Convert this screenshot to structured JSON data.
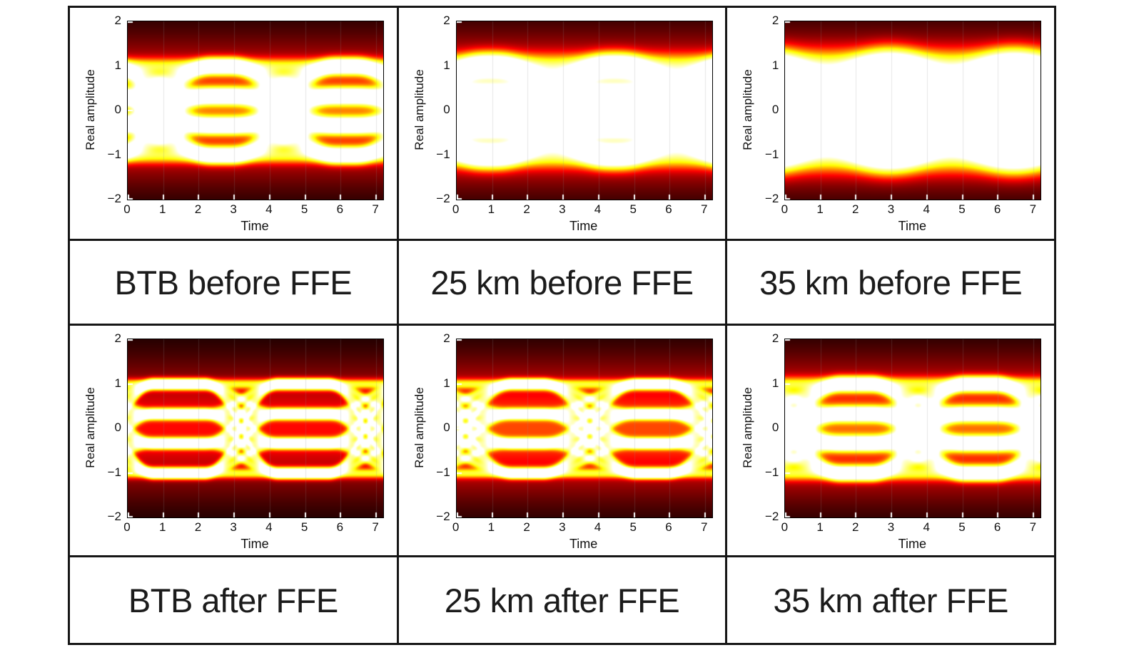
{
  "panels": [
    {
      "caption": "BTB before FFE"
    },
    {
      "caption": "25 km before FFE"
    },
    {
      "caption": "35 km before FFE"
    },
    {
      "caption": "BTB after FFE"
    },
    {
      "caption": "25 km after FFE"
    },
    {
      "caption": "35 km after FFE"
    }
  ],
  "chart_data": [
    {
      "type": "heatmap",
      "title": "BTB before FFE",
      "description": "PAM-4 eye diagram density plot, hot colormap, moderate noise",
      "xlabel": "Time",
      "ylabel": "Real amplitude",
      "xlim": [
        0,
        7.2
      ],
      "ylim": [
        -2,
        2
      ],
      "xticks": [
        0,
        1,
        2,
        3,
        4,
        5,
        6,
        7
      ],
      "yticks": [
        2,
        1,
        0,
        -1,
        -2
      ],
      "colormap": "hot (black-red-orange-yellow)",
      "eye": {
        "signal": "PAM-4",
        "levels": [
          -1,
          -0.33,
          0.33,
          1
        ],
        "period": 3.5,
        "phase": 0.9,
        "transition_halfwidth": 0.42,
        "noise_sigma": 0.11,
        "jitter": 0.12,
        "haze": 0.035,
        "gain": 1.0
      }
    },
    {
      "type": "heatmap",
      "title": "25 km before FFE",
      "description": "PAM-4 eye diagram density plot, hot colormap, stronger blur after 25 km fiber",
      "xlabel": "Time",
      "ylabel": "Real amplitude",
      "xlim": [
        0,
        7.2
      ],
      "ylim": [
        -2,
        2
      ],
      "xticks": [
        0,
        1,
        2,
        3,
        4,
        5,
        6,
        7
      ],
      "yticks": [
        2,
        1,
        0,
        -1,
        -2
      ],
      "colormap": "hot (black-red-orange-yellow)",
      "eye": {
        "signal": "PAM-4",
        "levels": [
          -1,
          -0.33,
          0.33,
          1
        ],
        "period": 3.5,
        "phase": 2.7,
        "transition_halfwidth": 0.45,
        "noise_sigma": 0.17,
        "jitter": 0.2,
        "haze": 0.05,
        "gain": 1.12
      }
    },
    {
      "type": "heatmap",
      "title": "35 km before FFE",
      "description": "PAM-4 eye diagram density plot, hot colormap, heaviest blur after 35 km fiber",
      "xlabel": "Time",
      "ylabel": "Real amplitude",
      "xlim": [
        0,
        7.2
      ],
      "ylim": [
        -2,
        2
      ],
      "xticks": [
        0,
        1,
        2,
        3,
        4,
        5,
        6,
        7
      ],
      "yticks": [
        2,
        1,
        0,
        -1,
        -2
      ],
      "colormap": "hot (black-red-orange-yellow)",
      "eye": {
        "signal": "PAM-4",
        "levels": [
          -1,
          -0.33,
          0.33,
          1
        ],
        "period": 3.5,
        "phase": 1.2,
        "transition_halfwidth": 0.48,
        "noise_sigma": 0.23,
        "jitter": 0.3,
        "haze": 0.06,
        "gain": 1.25
      }
    },
    {
      "type": "heatmap",
      "title": "BTB after FFE",
      "description": "PAM-4 eye diagram after feed-forward equalization, clear open eyes with four bright levels",
      "xlabel": "Time",
      "ylabel": "Real amplitude",
      "xlim": [
        0,
        7.2
      ],
      "ylim": [
        -2,
        2
      ],
      "xticks": [
        0,
        1,
        2,
        3,
        4,
        5,
        6,
        7
      ],
      "yticks": [
        2,
        1,
        0,
        -1,
        -2
      ],
      "colormap": "hot (black-red-orange-yellow)",
      "eye": {
        "signal": "PAM-4",
        "levels": [
          -1,
          -0.33,
          0.33,
          1
        ],
        "period": 3.5,
        "phase": 3.2,
        "transition_halfwidth": 0.3,
        "noise_sigma": 0.07,
        "jitter": 0.04,
        "haze": 0.02,
        "gain": 1.0
      }
    },
    {
      "type": "heatmap",
      "title": "25 km after FFE",
      "description": "PAM-4 eye diagram after feed-forward equalization, diamond-shaped open eyes",
      "xlabel": "Time",
      "ylabel": "Real amplitude",
      "xlim": [
        0,
        7.2
      ],
      "ylim": [
        -2,
        2
      ],
      "xticks": [
        0,
        1,
        2,
        3,
        4,
        5,
        6,
        7
      ],
      "yticks": [
        2,
        1,
        0,
        -1,
        -2
      ],
      "colormap": "hot (black-red-orange-yellow)",
      "eye": {
        "signal": "PAM-4",
        "levels": [
          -1,
          -0.33,
          0.33,
          1
        ],
        "period": 3.5,
        "phase": 0.25,
        "transition_halfwidth": 0.38,
        "noise_sigma": 0.07,
        "jitter": 0.05,
        "haze": 0.03,
        "gain": 1.0
      }
    },
    {
      "type": "heatmap",
      "title": "35 km after FFE",
      "description": "PAM-4 eye diagram after feed-forward equalization, diamond eyes with slightly more blur",
      "xlabel": "Time",
      "ylabel": "Real amplitude",
      "xlim": [
        0,
        7.2
      ],
      "ylim": [
        -2,
        2
      ],
      "xticks": [
        0,
        1,
        2,
        3,
        4,
        5,
        6,
        7
      ],
      "yticks": [
        2,
        1,
        0,
        -1,
        -2
      ],
      "colormap": "hot (black-red-orange-yellow)",
      "eye": {
        "signal": "PAM-4",
        "levels": [
          -1,
          -0.33,
          0.33,
          1
        ],
        "period": 3.5,
        "phase": 0.25,
        "transition_halfwidth": 0.38,
        "noise_sigma": 0.1,
        "jitter": 0.08,
        "haze": 0.035,
        "gain": 1.0
      }
    }
  ]
}
